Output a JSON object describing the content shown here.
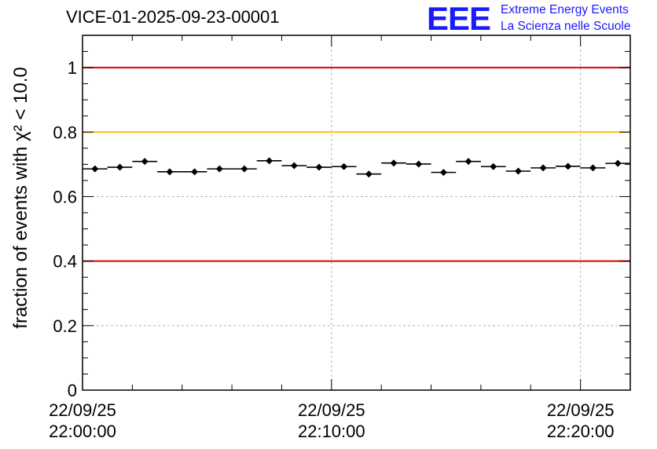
{
  "header": {
    "run_title": "VICE-01-2025-09-23-00001"
  },
  "logo": {
    "letters": "EEE",
    "line1": "Extreme Energy Events",
    "line2": "La Scienza nelle Scuole",
    "color": "#1a1aff"
  },
  "chart_data": {
    "type": "scatter",
    "title": "VICE-01-2025-09-23-00001",
    "ylabel": "fraction of events with χ² < 10.0",
    "xlabel": "",
    "x_unit": "minutes after 22/09/25 22:00:00",
    "xlim": [
      0,
      22
    ],
    "ylim": [
      0,
      1.1
    ],
    "grid": true,
    "y_ticks": [
      {
        "value": 0,
        "label": "0"
      },
      {
        "value": 0.2,
        "label": "0.2"
      },
      {
        "value": 0.4,
        "label": "0.4"
      },
      {
        "value": 0.6,
        "label": "0.6"
      },
      {
        "value": 0.8,
        "label": "0.8"
      },
      {
        "value": 1,
        "label": "1"
      }
    ],
    "x_ticks": [
      {
        "value": 0,
        "date": "22/09/25",
        "time": "22:00:00"
      },
      {
        "value": 10,
        "date": "22/09/25",
        "time": "22:10:00"
      },
      {
        "value": 20,
        "date": "22/09/25",
        "time": "22:20:00"
      }
    ],
    "reference_lines": [
      {
        "y": 1.0,
        "color": "#e00000"
      },
      {
        "y": 0.8,
        "color": "#ffc000"
      },
      {
        "y": 0.4,
        "color": "#e00000"
      }
    ],
    "bin_width_minutes": 1,
    "points": [
      {
        "x": 0.5,
        "y": 0.686
      },
      {
        "x": 1.5,
        "y": 0.691
      },
      {
        "x": 2.5,
        "y": 0.709
      },
      {
        "x": 3.5,
        "y": 0.677
      },
      {
        "x": 4.5,
        "y": 0.677
      },
      {
        "x": 5.5,
        "y": 0.686
      },
      {
        "x": 6.5,
        "y": 0.686
      },
      {
        "x": 7.5,
        "y": 0.711
      },
      {
        "x": 8.5,
        "y": 0.696
      },
      {
        "x": 9.5,
        "y": 0.691
      },
      {
        "x": 10.5,
        "y": 0.693
      },
      {
        "x": 11.5,
        "y": 0.67
      },
      {
        "x": 12.5,
        "y": 0.704
      },
      {
        "x": 13.5,
        "y": 0.701
      },
      {
        "x": 14.5,
        "y": 0.675
      },
      {
        "x": 15.5,
        "y": 0.709
      },
      {
        "x": 16.5,
        "y": 0.693
      },
      {
        "x": 17.5,
        "y": 0.679
      },
      {
        "x": 18.5,
        "y": 0.689
      },
      {
        "x": 19.5,
        "y": 0.694
      },
      {
        "x": 20.5,
        "y": 0.689
      },
      {
        "x": 21.5,
        "y": 0.703
      }
    ]
  }
}
